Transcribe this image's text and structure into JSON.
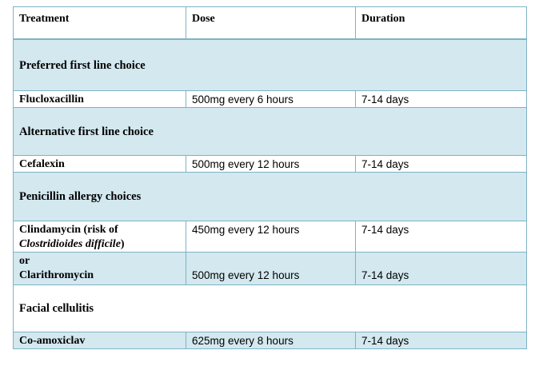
{
  "table": {
    "headers": [
      "Treatment",
      "Dose",
      "Duration"
    ],
    "sections": {
      "preferred": "Preferred first line choice",
      "alternative": "Alternative first line choice",
      "allergy": "Penicillin allergy choices",
      "facial": "Facial cellulitis"
    },
    "rows": {
      "flucloxacillin": {
        "treatment": "Flucloxacillin",
        "dose": "500mg every 6 hours",
        "duration": "7-14 days"
      },
      "cefalexin": {
        "treatment": "Cefalexin",
        "dose": "500mg every 12 hours",
        "duration": "7-14 days"
      },
      "clindamycin": {
        "treatment": "Clindamycin (risk of",
        "treatment_note": "Clostridioides difficile",
        "treatment_close": ")",
        "dose": "450mg every 12 hours",
        "duration": "7-14 days"
      },
      "clarithromycin": {
        "prefix": "or",
        "treatment": "Clarithromycin",
        "dose": "500mg every 12 hours",
        "duration": "7-14 days"
      },
      "coamoxiclav": {
        "treatment": "Co-amoxiclav",
        "dose": "625mg every 8 hours",
        "duration": "7-14 days"
      }
    }
  }
}
